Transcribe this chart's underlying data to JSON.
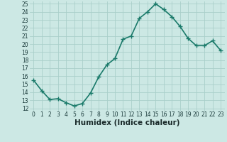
{
  "x": [
    0,
    1,
    2,
    3,
    4,
    5,
    6,
    7,
    8,
    9,
    10,
    11,
    12,
    13,
    14,
    15,
    16,
    17,
    18,
    19,
    20,
    21,
    22,
    23
  ],
  "y": [
    15.5,
    14.2,
    13.1,
    13.2,
    12.7,
    12.3,
    12.6,
    13.9,
    15.9,
    17.4,
    18.2,
    20.6,
    21.0,
    23.2,
    24.0,
    25.0,
    24.3,
    23.4,
    22.2,
    20.7,
    19.8,
    19.8,
    20.4,
    19.2
  ],
  "line_color": "#1a7a6a",
  "marker": "+",
  "marker_size": 4,
  "linewidth": 1.2,
  "bg_color": "#cce8e4",
  "grid_color": "#aacfca",
  "xlabel": "Humidex (Indice chaleur)",
  "ylim_min": 12,
  "ylim_max": 25,
  "xlim_min": -0.5,
  "xlim_max": 23.5,
  "yticks": [
    12,
    13,
    14,
    15,
    16,
    17,
    18,
    19,
    20,
    21,
    22,
    23,
    24,
    25
  ],
  "xticks": [
    0,
    1,
    2,
    3,
    4,
    5,
    6,
    7,
    8,
    9,
    10,
    11,
    12,
    13,
    14,
    15,
    16,
    17,
    18,
    19,
    20,
    21,
    22,
    23
  ],
  "tick_fontsize": 5.5,
  "xlabel_fontsize": 7.5,
  "tick_color": "#1a3a3a",
  "xlabel_color": "#1a2a2a"
}
